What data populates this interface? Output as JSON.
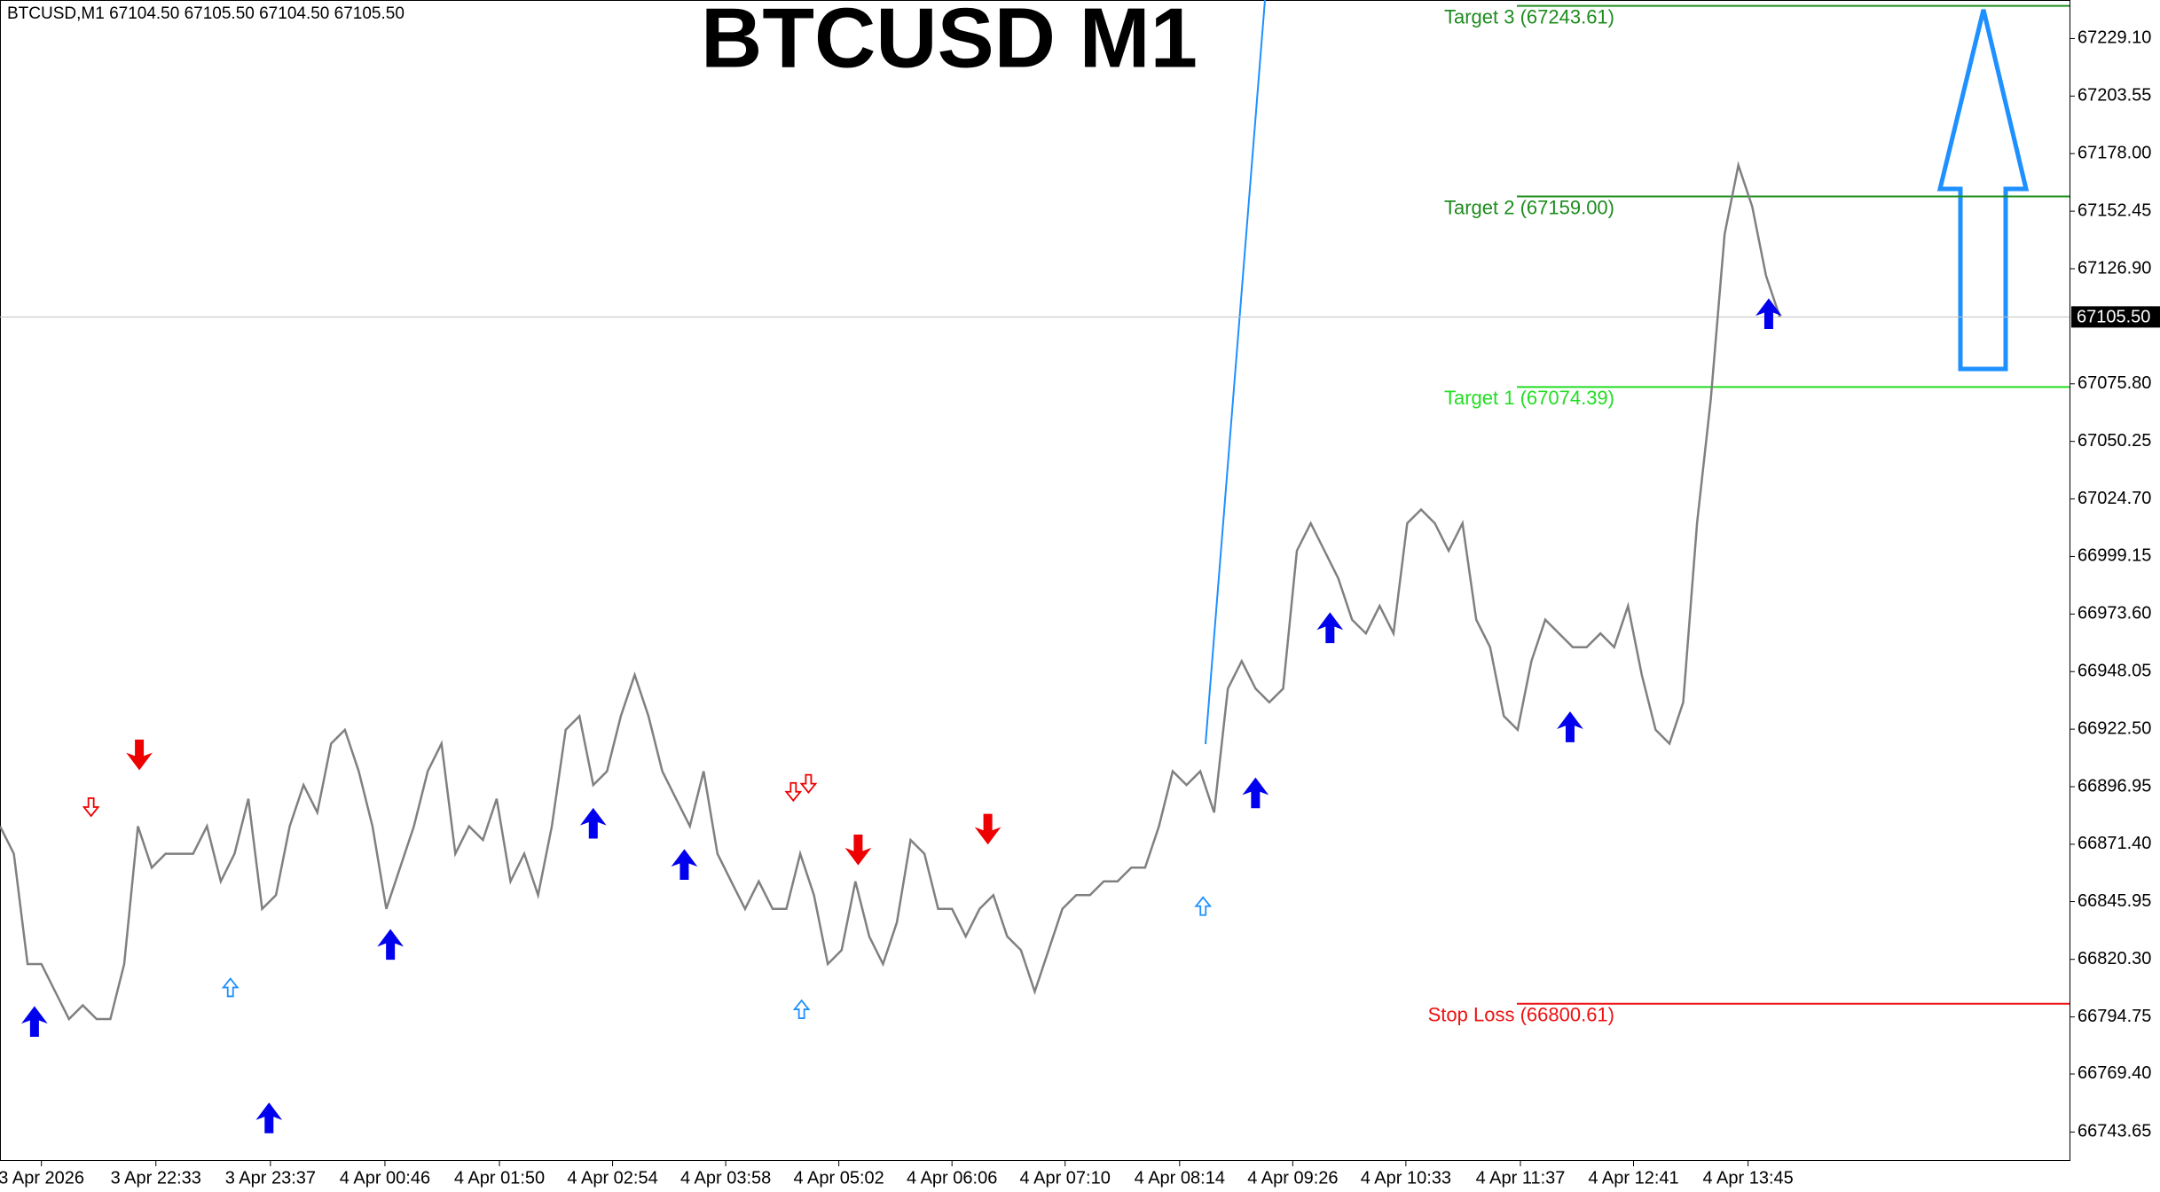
{
  "chart_data": {
    "type": "line",
    "title": "BTCUSD M1",
    "symbol_info": "BTCUSD,M1  67104.50 67105.50 67104.50 67105.50",
    "xlim": [
      0,
      150
    ],
    "xticks": [
      {
        "value": 3,
        "label": "3 Apr 2026"
      },
      {
        "value": 11.3,
        "label": "3 Apr 22:33"
      },
      {
        "value": 19.6,
        "label": "3 Apr 23:37"
      },
      {
        "value": 27.9,
        "label": "4 Apr 00:46"
      },
      {
        "value": 36.2,
        "label": "4 Apr 01:50"
      },
      {
        "value": 44.4,
        "label": "4 Apr 02:54"
      },
      {
        "value": 52.6,
        "label": "4 Apr 03:58"
      },
      {
        "value": 60.8,
        "label": "4 Apr 05:02"
      },
      {
        "value": 69,
        "label": "4 Apr 06:06"
      },
      {
        "value": 77.2,
        "label": "4 Apr 07:10"
      },
      {
        "value": 85.5,
        "label": "4 Apr 08:14"
      },
      {
        "value": 93.7,
        "label": "4 Apr 09:26"
      },
      {
        "value": 101.9,
        "label": "4 Apr 10:33"
      },
      {
        "value": 110.2,
        "label": "4 Apr 11:37"
      },
      {
        "value": 118.4,
        "label": "4 Apr 12:41"
      },
      {
        "value": 126.7,
        "label": "4 Apr 13:45"
      }
    ],
    "ylim": [
      66730.8,
      67246.2
    ],
    "yticks": [
      66743.65,
      {
        "value": 66769.4,
        "label": "66769.40"
      },
      66794.75,
      {
        "value": 66820.3,
        "label": "66820.30"
      },
      66845.95,
      {
        "value": 66871.4,
        "label": "66871.40"
      },
      66896.95,
      {
        "value": 66922.5,
        "label": "66922.50"
      },
      66948.05,
      {
        "value": 66973.6,
        "label": "66973.60"
      },
      66999.15,
      {
        "value": 67024.7,
        "label": "67024.70"
      },
      67050.25,
      {
        "value": 67075.8,
        "label": "67075.80"
      },
      {
        "value": 67126.9,
        "label": "67126.90"
      },
      67152.45,
      {
        "value": 67178,
        "label": "67178.00"
      },
      67203.55,
      {
        "value": 67229.1,
        "label": "67229.10"
      }
    ],
    "series": [
      {
        "color": "#808080",
        "values": [
          66879.4,
          66867.2,
          66818.2,
          66818.2,
          66806.0,
          66793.8,
          66799.9,
          66793.8,
          66793.8,
          66818.2,
          66879.4,
          66861.0,
          66867.2,
          66867.2,
          66867.2,
          66879.4,
          66854.9,
          66867.2,
          66891.6,
          66842.7,
          66848.8,
          66879.4,
          66897.7,
          66885.5,
          66916.1,
          66922.2,
          66903.8,
          66879.4,
          66842.7,
          66861.0,
          66879.4,
          66903.8,
          66916.1,
          66867.2,
          66879.4,
          66873.3,
          66891.6,
          66854.9,
          66867.2,
          66848.8,
          66879.4,
          66922.2,
          66928.3,
          66897.7,
          66903.8,
          66928.3,
          66946.6,
          66928.3,
          66903.8,
          66891.6,
          66879.4,
          66903.8,
          66867.2,
          66854.9,
          66842.7,
          66854.9,
          66842.7,
          66842.7,
          66867.2,
          66848.8,
          66818.2,
          66824.4,
          66854.9,
          66830.5,
          66818.2,
          66836.6,
          66873.3,
          66867.2,
          66842.7,
          66842.7,
          66830.5,
          66842.7,
          66848.8,
          66830.5,
          66824.4,
          66806.0,
          66824.4,
          66842.7,
          66848.8,
          66848.8,
          66854.9,
          66854.9,
          66861.0,
          66861.0,
          66879.4,
          66903.8,
          66897.7,
          66903.8,
          66885.5,
          66940.5,
          66952.7,
          66940.5,
          66934.4,
          66940.5,
          67001.7,
          67013.9,
          67001.7,
          66989.4,
          66971.1,
          66965.0,
          66977.2,
          66965.0,
          67013.9,
          67020.0,
          67013.9,
          67001.7,
          67013.9,
          66971.1,
          66958.9,
          66928.3,
          66922.2,
          66952.7,
          66971.1,
          66965.0,
          66958.9,
          66958.9,
          66965.0,
          66958.9,
          66977.2,
          66946.6,
          66922.2,
          66916.1,
          66934.4,
          67013.9,
          67068.9,
          67142.3,
          67172.9,
          67154.5,
          67123.9,
          67105.5
        ]
      }
    ],
    "current_price": {
      "value": 67105.5,
      "label": "67105.50",
      "color": "#c0c0c0"
    },
    "levels": [
      {
        "label": "Target 3 (67243.61)",
        "value": 67243.61,
        "color": "#1e8c1e"
      },
      {
        "label": "Target 2 (67159.00)",
        "value": 67159.0,
        "color": "#1e8c1e"
      },
      {
        "label": "Target 1 (67074.39)",
        "value": 67074.39,
        "color": "#22dd22"
      },
      {
        "label": "Stop Loss (66800.61)",
        "value": 66800.61,
        "color": "#ee1111"
      }
    ],
    "arrows": {
      "buy": {
        "color": "#0000ee",
        "x": [
          2.5,
          19.5,
          28.3,
          43,
          49.6,
          91,
          96.4,
          113.8,
          128.2
        ],
        "y": [
          66792.6,
          66749.8,
          66826.8,
          66880.6,
          66862.3,
          66894.1,
          66967.4,
          66923.4,
          67106.8
        ]
      },
      "sell": {
        "color": "#ee0000",
        "x": [
          10.1,
          62.2,
          71.6
        ],
        "y": [
          66911.2,
          66869.0,
          66878.2
        ]
      },
      "hollow_buy": {
        "color": "#1e90ff",
        "x": [
          16.7,
          58.1,
          87.2
        ],
        "y": [
          66807.8,
          66798.1,
          66843.9
        ]
      },
      "hollow_sell": {
        "color": "#ee0000",
        "x": [
          6.6,
          57.5,
          58.6
        ],
        "y": [
          66887.9,
          66894.7,
          66898.3
        ]
      }
    }
  }
}
